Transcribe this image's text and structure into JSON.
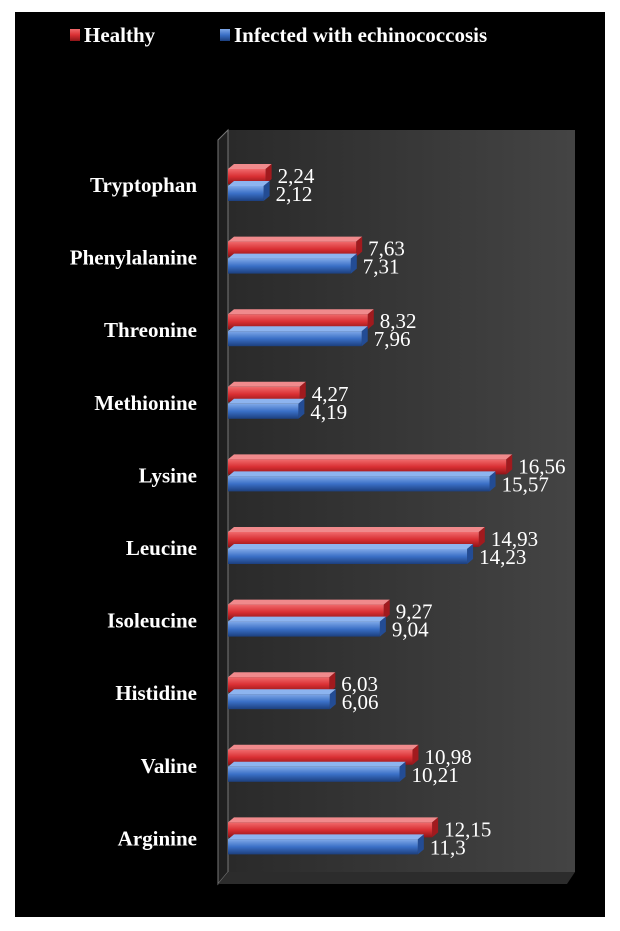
{
  "chart_data": {
    "type": "bar",
    "orientation": "horizontal",
    "categories": [
      "Tryptophan",
      "Phenylalanine",
      "Threonine",
      "Methionine",
      "Lysine",
      "Leucine",
      "Isoleucine",
      "Histidine",
      "Valine",
      "Arginine"
    ],
    "series": [
      {
        "name": "Healthy",
        "values": [
          2.24,
          7.63,
          8.32,
          4.27,
          16.56,
          14.93,
          9.27,
          6.03,
          10.98,
          12.15
        ],
        "labels": [
          "2,24",
          "7,63",
          "8,32",
          "4,27",
          "16,56",
          "14,93",
          "9,27",
          "6,03",
          "10,98",
          "12,15"
        ],
        "color": "#e0383b"
      },
      {
        "name": "Infected with echinococcosis",
        "values": [
          2.12,
          7.31,
          7.96,
          4.19,
          15.57,
          14.23,
          9.04,
          6.06,
          10.21,
          11.3
        ],
        "labels": [
          "2,12",
          "7,31",
          "7,96",
          "4,19",
          "15,57",
          "14,23",
          "9,04",
          "6,06",
          "10,21",
          "11,3"
        ],
        "color": "#3b72c9"
      }
    ],
    "title": "",
    "xlabel": "",
    "ylabel": "",
    "xlim": [
      0,
      20
    ],
    "legend": "top",
    "grid": false,
    "background": "#000000",
    "plot_area_color": "#3a3a3a"
  }
}
